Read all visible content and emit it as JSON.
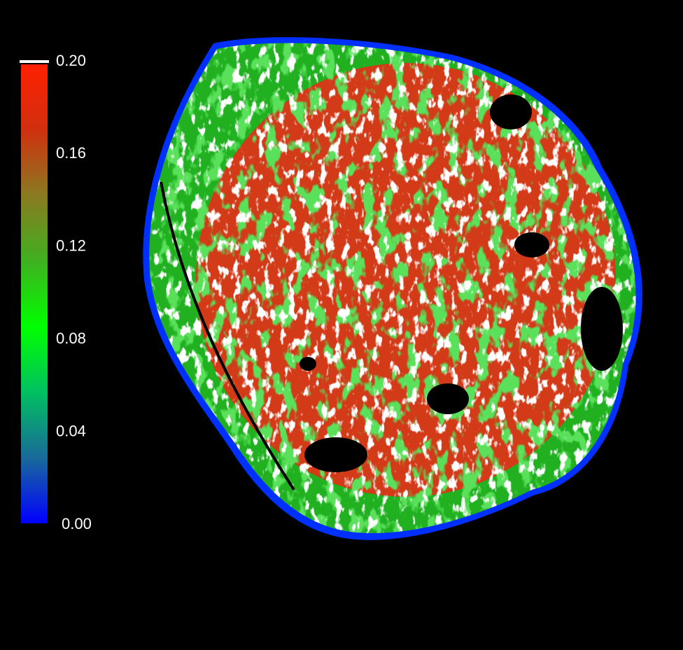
{
  "colorbar": {
    "lim": [
      0,
      0.2
    ],
    "ticks": [
      {
        "value": 0.2,
        "label": "0.20"
      },
      {
        "value": 0.16,
        "label": "0.16"
      },
      {
        "value": 0.12,
        "label": "0.12"
      },
      {
        "value": 0.08,
        "label": "0.08"
      },
      {
        "value": 0.04,
        "label": "0.04"
      },
      {
        "value": 0,
        "label": "0.00"
      }
    ],
    "colors": [
      "#0000ff",
      "#1a6a9a",
      "#00c060",
      "#00ff00",
      "#40b020",
      "#8a7a20",
      "#d03010",
      "#ff2000"
    ]
  }
}
